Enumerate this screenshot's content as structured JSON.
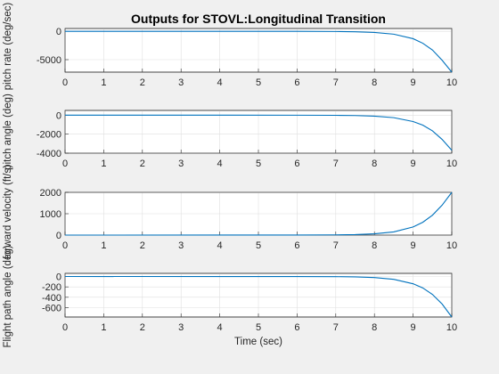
{
  "chart_data": {
    "type": "line",
    "title": "Outputs for STOVL:Longitudinal Transition",
    "xlabel": "Time (sec)",
    "xlim": [
      0,
      10
    ],
    "xticks": [
      0,
      1,
      2,
      3,
      4,
      5,
      6,
      7,
      8,
      9,
      10
    ],
    "grid": true,
    "line_color": "#0072bd",
    "subplots": [
      {
        "ylabel": "pitch rate (deg/sec)",
        "ylim": [
          -7200,
          500
        ],
        "yticks": [
          0,
          -5000
        ],
        "series": [
          {
            "x": [
              0,
              6,
              7,
              7.5,
              8,
              8.5,
              9,
              9.25,
              9.5,
              9.75,
              10
            ],
            "y": [
              0,
              -4,
              -30,
              -80,
              -200,
              -500,
              -1300,
              -2100,
              -3300,
              -5100,
              -7200
            ]
          }
        ]
      },
      {
        "ylabel": "pitch angle (deg)",
        "ylim": [
          -4000,
          500
        ],
        "yticks": [
          0,
          -2000,
          -4000
        ],
        "series": [
          {
            "x": [
              0,
              6,
              7,
              7.5,
              8,
              8.5,
              9,
              9.25,
              9.5,
              9.75,
              10
            ],
            "y": [
              0,
              -3,
              -15,
              -40,
              -100,
              -260,
              -670,
              -1050,
              -1650,
              -2550,
              -3700
            ]
          }
        ]
      },
      {
        "ylabel": "forward velocity (ft/s)",
        "ylim": [
          0,
          2000
        ],
        "yticks": [
          0,
          1000,
          2000
        ],
        "series": [
          {
            "x": [
              0,
              6,
              7,
              7.5,
              8,
              8.5,
              9,
              9.25,
              9.5,
              9.75,
              10
            ],
            "y": [
              0,
              2,
              10,
              25,
              60,
              150,
              380,
              600,
              930,
              1400,
              2000
            ]
          }
        ]
      },
      {
        "ylabel": "Flight path angle (deg)",
        "ylim": [
          -780,
          60
        ],
        "yticks": [
          0,
          -200,
          -400,
          -600
        ],
        "series": [
          {
            "x": [
              0,
              6,
              7,
              7.5,
              8,
              8.5,
              9,
              9.25,
              9.5,
              9.75,
              10
            ],
            "y": [
              0,
              -1,
              -3,
              -8,
              -20,
              -55,
              -140,
              -220,
              -345,
              -530,
              -780
            ]
          }
        ]
      }
    ]
  }
}
